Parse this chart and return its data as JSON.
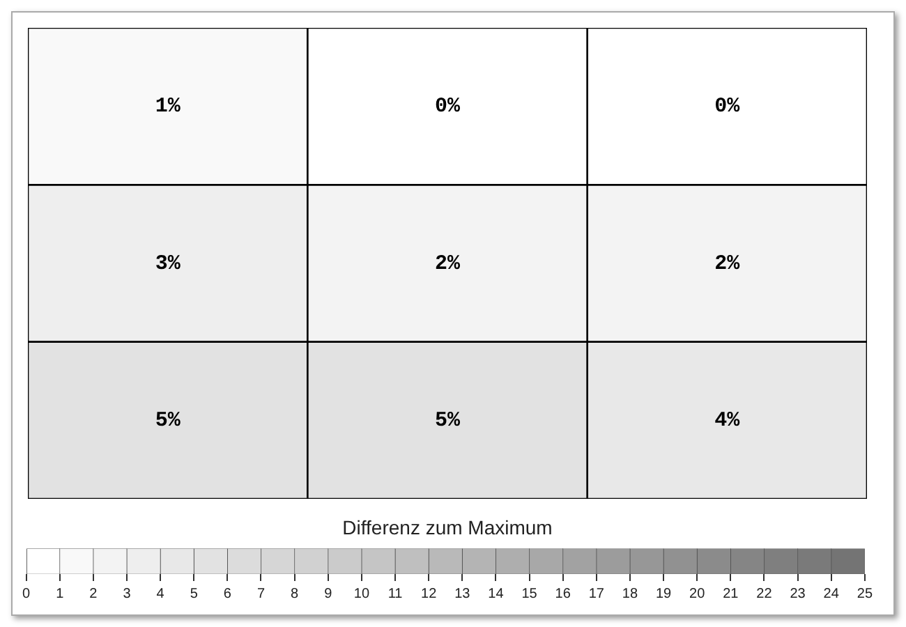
{
  "chart_data": {
    "type": "heatmap",
    "categories": [
      null,
      null,
      null
    ],
    "y_categories": [
      null,
      null,
      null
    ],
    "cells": [
      [
        1,
        0,
        0
      ],
      [
        3,
        2,
        2
      ],
      [
        5,
        5,
        4
      ]
    ],
    "cell_labels": [
      [
        "1%",
        "0%",
        "0%"
      ],
      [
        "3%",
        "2%",
        "2%"
      ],
      [
        "5%",
        "5%",
        "4%"
      ]
    ],
    "clabel": "Differenz zum Maximum",
    "clim": [
      0,
      25
    ],
    "cticks": [
      0,
      1,
      2,
      3,
      4,
      5,
      6,
      7,
      8,
      9,
      10,
      11,
      12,
      13,
      14,
      15,
      16,
      17,
      18,
      19,
      20,
      21,
      22,
      23,
      24,
      25
    ],
    "tick_labels": false
  }
}
